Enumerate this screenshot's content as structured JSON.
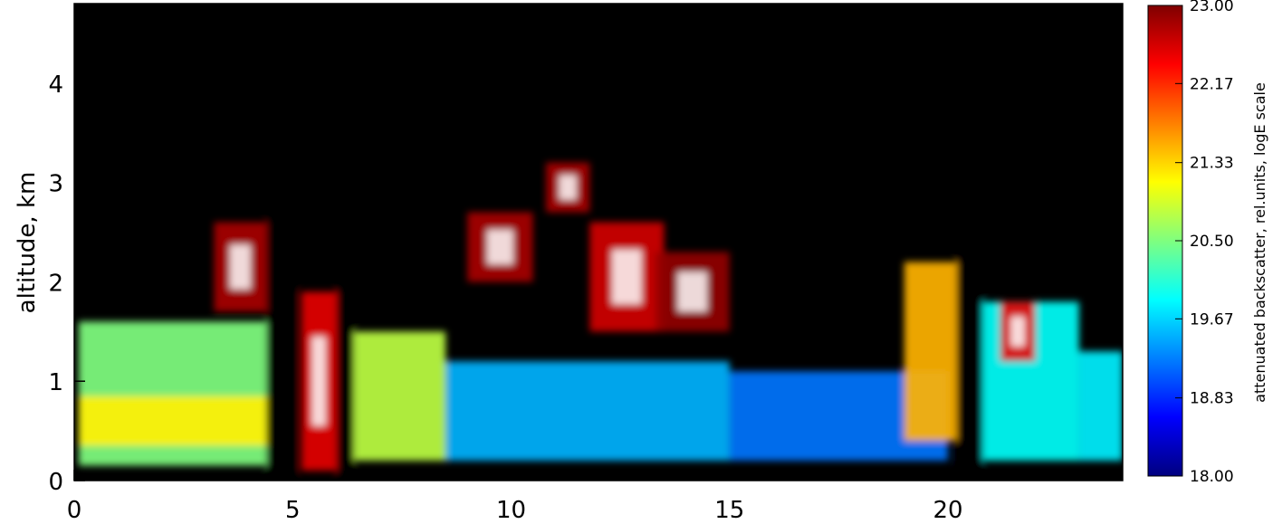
{
  "chart_data": {
    "type": "heatmap",
    "title": "",
    "xlabel": "",
    "ylabel": "altitude, km",
    "xlim": [
      0,
      24
    ],
    "ylim": [
      0,
      4.8
    ],
    "x_ticks": [
      "0",
      "5",
      "10",
      "15",
      "20"
    ],
    "x_tick_values": [
      0,
      5,
      10,
      15,
      20
    ],
    "y_ticks": [
      "0",
      "1",
      "2",
      "3",
      "4"
    ],
    "y_tick_values": [
      0,
      1,
      2,
      3,
      4
    ],
    "colorbar": {
      "label": "attenuated backscatter, rel.units, logE scale",
      "range": [
        18.0,
        23.0
      ],
      "tick_labels": [
        "18.00",
        "18.83",
        "19.67",
        "20.50",
        "21.33",
        "22.17",
        "23.00"
      ],
      "tick_values": [
        18.0,
        18.83,
        19.67,
        20.5,
        21.33,
        22.17,
        23.0
      ],
      "colormap": "jet",
      "colors": [
        "#00007f",
        "#0000ff",
        "#00ffff",
        "#ffff00",
        "#ff7f00",
        "#ff0000",
        "#7f0000"
      ]
    },
    "background_color": "#000000",
    "saturation_color": "#ffffff",
    "gaps_no_data": [
      [
        4.4,
        5.1
      ],
      [
        6.0,
        6.4
      ],
      [
        20.2,
        20.8
      ]
    ],
    "layers": [
      {
        "x": [
          0.1,
          4.4
        ],
        "y": [
          0.15,
          1.6
        ],
        "value": 20.5
      },
      {
        "x": [
          0.1,
          4.4
        ],
        "y": [
          0.35,
          0.85
        ],
        "value": 21.2
      },
      {
        "x": [
          3.2,
          4.4
        ],
        "y": [
          1.7,
          2.6
        ],
        "value": 22.8
      },
      {
        "x": [
          5.2,
          6.0
        ],
        "y": [
          0.1,
          1.9
        ],
        "value": 22.5
      },
      {
        "x": [
          6.4,
          8.5
        ],
        "y": [
          0.2,
          1.5
        ],
        "value": 20.8
      },
      {
        "x": [
          8.5,
          15.0
        ],
        "y": [
          0.2,
          1.2
        ],
        "value": 19.5
      },
      {
        "x": [
          9.0,
          10.5
        ],
        "y": [
          2.0,
          2.7
        ],
        "value": 22.8
      },
      {
        "x": [
          10.8,
          11.8
        ],
        "y": [
          2.7,
          3.2
        ],
        "value": 22.8
      },
      {
        "x": [
          11.8,
          13.5
        ],
        "y": [
          1.5,
          2.6
        ],
        "value": 22.6
      },
      {
        "x": [
          13.3,
          15.0
        ],
        "y": [
          1.5,
          2.3
        ],
        "value": 22.9
      },
      {
        "x": [
          15.0,
          20.0
        ],
        "y": [
          0.2,
          1.1
        ],
        "value": 19.2
      },
      {
        "x": [
          19.0,
          20.2
        ],
        "y": [
          0.4,
          2.2
        ],
        "value": 21.5
      },
      {
        "x": [
          20.8,
          23.0
        ],
        "y": [
          0.2,
          1.8
        ],
        "value": 19.9
      },
      {
        "x": [
          21.2,
          22.0
        ],
        "y": [
          1.2,
          1.8
        ],
        "value": 22.5
      },
      {
        "x": [
          23.0,
          24.0
        ],
        "y": [
          0.2,
          1.3
        ],
        "value": 19.8
      }
    ]
  }
}
